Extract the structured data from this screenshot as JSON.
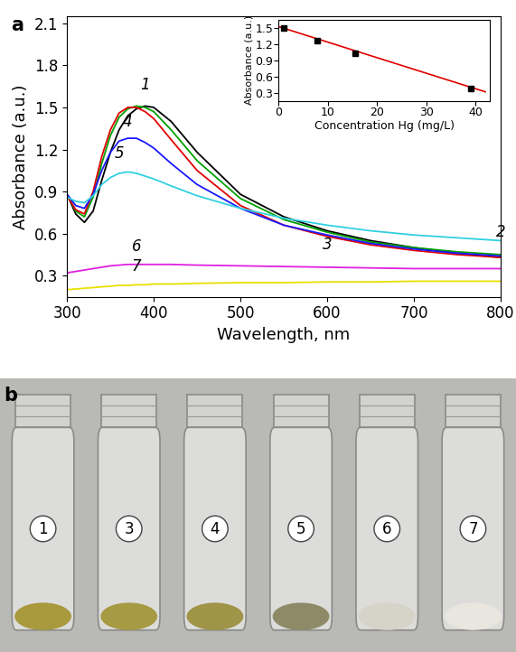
{
  "chart_data": [
    {
      "type": "line",
      "panel_label": "a",
      "x_label": "Wavelength, nm",
      "y_label": "Absorbance (a.u.)",
      "x": [
        300,
        310,
        320,
        330,
        340,
        350,
        360,
        370,
        380,
        390,
        400,
        420,
        450,
        500,
        550,
        600,
        650,
        700,
        750,
        800
      ],
      "xlim": [
        300,
        800
      ],
      "xticks": [
        300,
        400,
        500,
        600,
        700,
        800
      ],
      "ylim": [
        0.15,
        2.15
      ],
      "yticks": [
        0.3,
        0.6,
        0.9,
        1.2,
        1.5,
        1.8,
        2.1
      ],
      "series": [
        {
          "name": "1",
          "color": "#000000",
          "values": [
            0.88,
            0.74,
            0.68,
            0.76,
            0.98,
            1.18,
            1.34,
            1.44,
            1.49,
            1.51,
            1.5,
            1.4,
            1.18,
            0.88,
            0.72,
            0.62,
            0.55,
            0.5,
            0.46,
            0.43
          ]
        },
        {
          "name": "2",
          "color": "#00a000",
          "values": [
            0.88,
            0.76,
            0.72,
            0.86,
            1.1,
            1.3,
            1.43,
            1.49,
            1.51,
            1.5,
            1.47,
            1.34,
            1.12,
            0.85,
            0.7,
            0.61,
            0.54,
            0.5,
            0.47,
            0.45
          ]
        },
        {
          "name": "3",
          "color": "#e00000",
          "values": [
            0.87,
            0.77,
            0.74,
            0.9,
            1.15,
            1.34,
            1.46,
            1.5,
            1.5,
            1.47,
            1.42,
            1.27,
            1.05,
            0.8,
            0.66,
            0.58,
            0.52,
            0.48,
            0.45,
            0.43
          ]
        },
        {
          "name": "4",
          "color": "#1a1aff",
          "values": [
            0.88,
            0.8,
            0.78,
            0.88,
            1.05,
            1.18,
            1.26,
            1.28,
            1.28,
            1.25,
            1.21,
            1.1,
            0.95,
            0.78,
            0.66,
            0.59,
            0.53,
            0.49,
            0.46,
            0.44
          ]
        },
        {
          "name": "5",
          "color": "#30d0e0",
          "values": [
            0.86,
            0.83,
            0.82,
            0.87,
            0.95,
            1.0,
            1.03,
            1.04,
            1.03,
            1.01,
            0.99,
            0.94,
            0.87,
            0.78,
            0.71,
            0.66,
            0.62,
            0.59,
            0.57,
            0.55
          ]
        },
        {
          "name": "6",
          "color": "#e020e0",
          "values": [
            0.32,
            0.33,
            0.34,
            0.35,
            0.36,
            0.37,
            0.375,
            0.38,
            0.38,
            0.38,
            0.38,
            0.38,
            0.375,
            0.37,
            0.365,
            0.36,
            0.355,
            0.35,
            0.35,
            0.35
          ]
        },
        {
          "name": "7",
          "color": "#e8e000",
          "values": [
            0.2,
            0.205,
            0.21,
            0.215,
            0.22,
            0.225,
            0.23,
            0.23,
            0.235,
            0.235,
            0.24,
            0.24,
            0.245,
            0.25,
            0.25,
            0.255,
            0.255,
            0.26,
            0.26,
            0.26
          ]
        }
      ]
    },
    {
      "type": "scatter",
      "x_label": "Concentration Hg (mg/L)",
      "y_label": "Absorbance (a.u.)",
      "x": [
        1,
        7.8,
        15.6,
        39
      ],
      "values": [
        1.49,
        1.27,
        1.03,
        0.38
      ],
      "color": "#000000",
      "marker": "square",
      "fit": {
        "x": [
          0,
          42
        ],
        "values": [
          1.52,
          0.32
        ],
        "color": "#e00000"
      },
      "xlim": [
        0,
        43
      ],
      "xticks": [
        0,
        10,
        20,
        30,
        40
      ],
      "ylim": [
        0.15,
        1.65
      ],
      "yticks": [
        0.3,
        0.6,
        0.9,
        1.2,
        1.5
      ]
    }
  ],
  "photo": {
    "panel_label": "b",
    "vials": [
      {
        "label": "1",
        "color": "#a8993c"
      },
      {
        "label": "3",
        "color": "#a69a42"
      },
      {
        "label": "4",
        "color": "#9f9448"
      },
      {
        "label": "5",
        "color": "#8e8a68"
      },
      {
        "label": "6",
        "color": "#d6d3c8"
      },
      {
        "label": "7",
        "color": "#e8e6df"
      }
    ]
  }
}
